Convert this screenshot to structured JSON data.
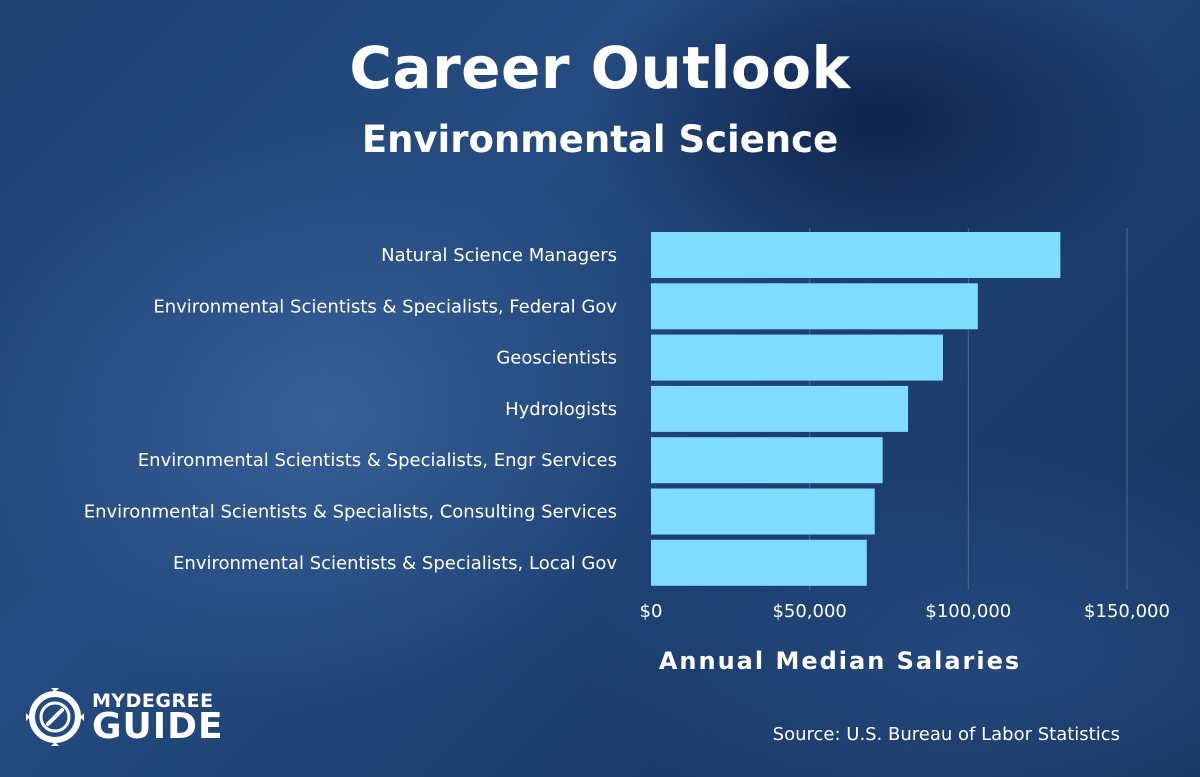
{
  "header": {
    "title": "Career Outlook",
    "subtitle": "Environmental Science"
  },
  "chart_data": {
    "type": "bar",
    "orientation": "horizontal",
    "title": "Career Outlook",
    "subtitle": "Environmental Science",
    "xlabel": "Annual Median Salaries",
    "ylabel": "",
    "categories": [
      "Natural Science Managers",
      "Environmental Scientists & Specialists, Federal Gov",
      "Geoscientists",
      "Hydrologists",
      "Environmental Scientists & Specialists, Engr Services",
      "Environmental Scientists & Specialists, Consulting Services",
      "Environmental Scientists & Specialists, Local Gov"
    ],
    "values": [
      129000,
      103000,
      92000,
      81000,
      73000,
      70500,
      68000
    ],
    "xlim": [
      0,
      150000
    ],
    "ticks": [
      0,
      50000,
      100000,
      150000
    ],
    "tick_labels": [
      "$0",
      "$50,000",
      "$100,000",
      "$150,000"
    ],
    "grid": "vertical",
    "bar_color": "#7fdcff",
    "grid_color": "#5b7aa6"
  },
  "source": "Source: U.S. Bureau of Labor Statistics",
  "logo": {
    "top": "MYDEGREE",
    "bottom": "GUIDE"
  },
  "icons": {
    "logo": "compass-icon"
  }
}
